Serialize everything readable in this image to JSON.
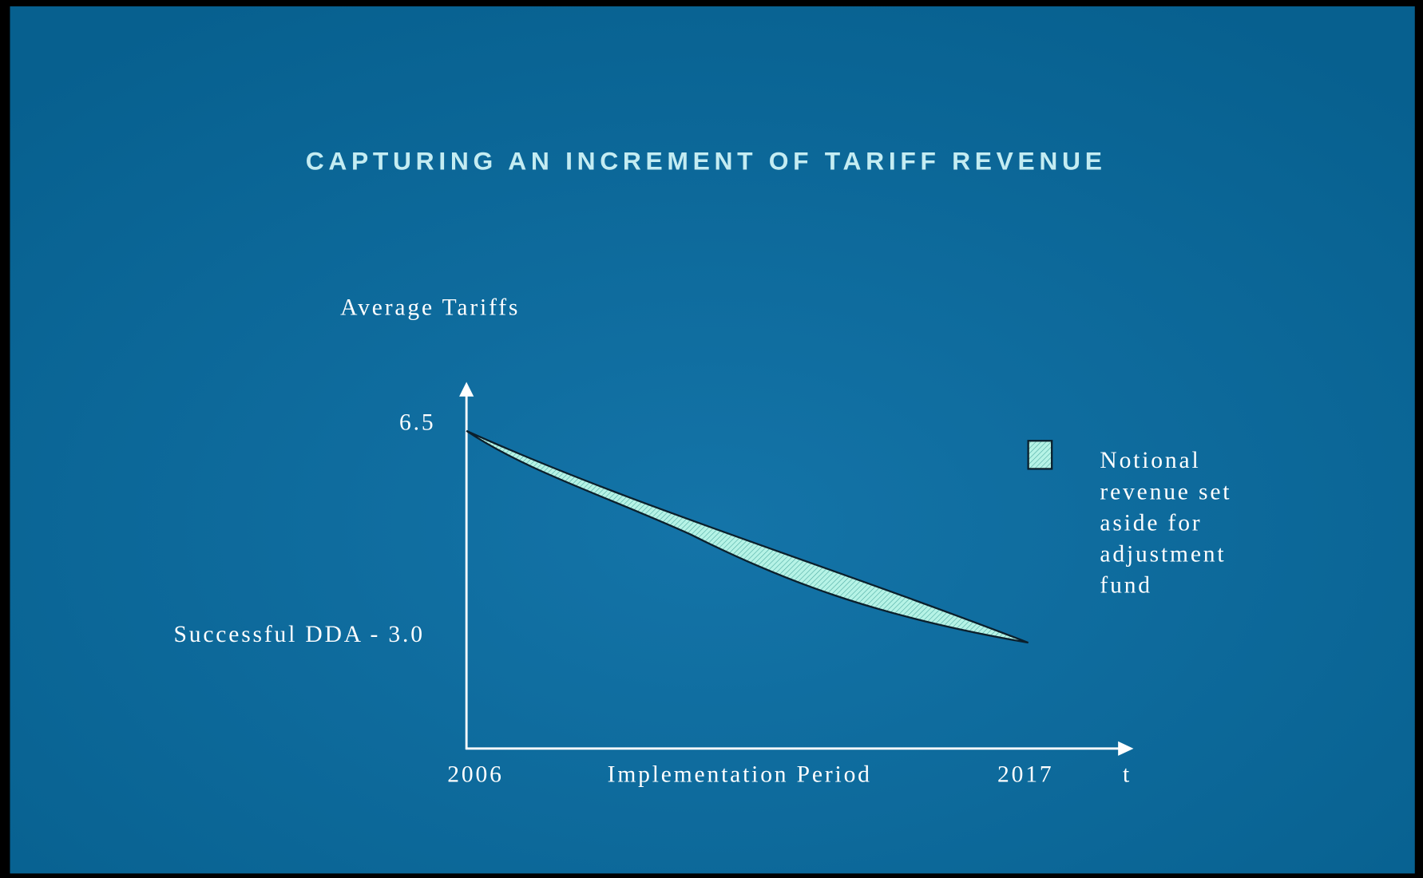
{
  "title": "CAPTURING AN INCREMENT OF TARIFF REVENUE",
  "y_axis_label": "Average Tariffs",
  "y_labels": [
    "6.5",
    "Successful DDA - 3.0"
  ],
  "x_labels": [
    "2006",
    "Implementation Period",
    "2017",
    "t"
  ],
  "legend": {
    "lines": [
      "Notional",
      "revenue set",
      "aside for",
      "adjustment",
      "fund"
    ]
  }
}
